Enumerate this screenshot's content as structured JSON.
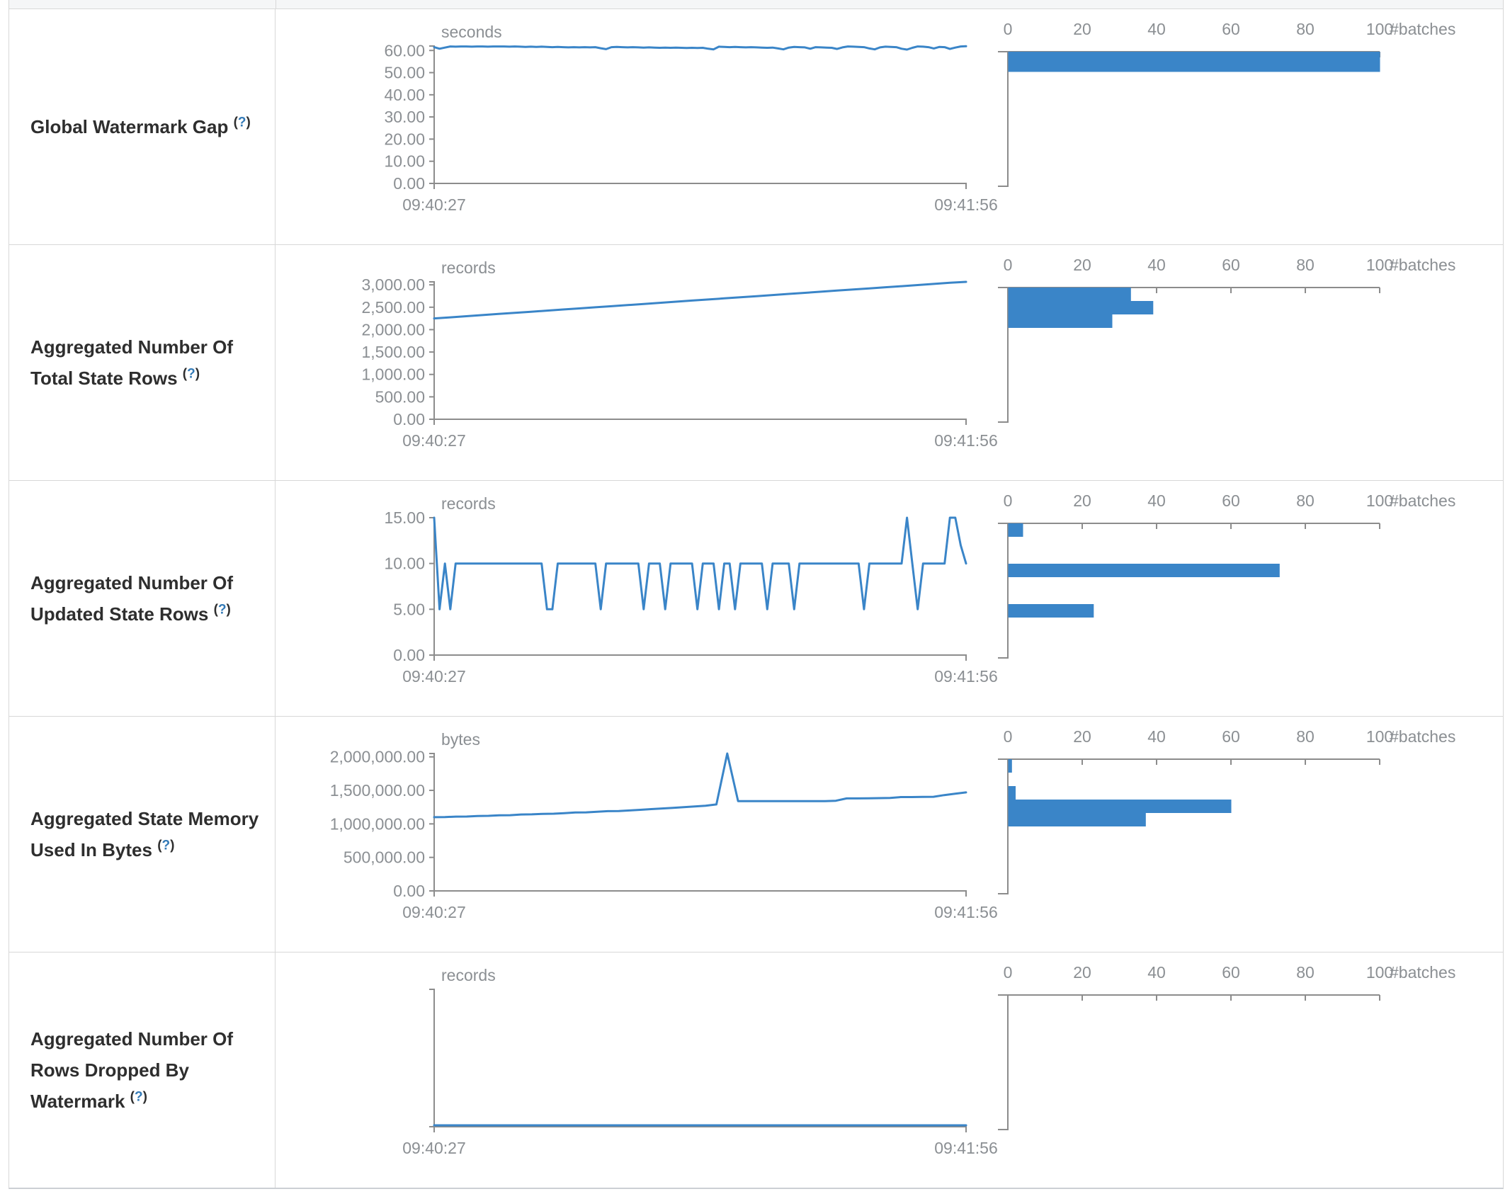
{
  "table": {
    "help_open": "(",
    "help_q": "?",
    "help_close": ")"
  },
  "chart_data": [
    {
      "row_label": "Global Watermark Gap",
      "timeline": {
        "type": "line",
        "unit": "seconds",
        "x_start": "09:40:27",
        "x_end": "09:41:56",
        "y_max": 62,
        "y_ticks": [
          {
            "v": 0,
            "label": "0.00"
          },
          {
            "v": 10,
            "label": "10.00"
          },
          {
            "v": 20,
            "label": "20.00"
          },
          {
            "v": 30,
            "label": "30.00"
          },
          {
            "v": 40,
            "label": "40.00"
          },
          {
            "v": 50,
            "label": "50.00"
          },
          {
            "v": 60,
            "label": "60.00"
          }
        ],
        "values": [
          61.5,
          60.8,
          61.3,
          61.8,
          61.7,
          61.8,
          61.8,
          61.7,
          61.8,
          61.8,
          61.7,
          61.8,
          61.8,
          61.8,
          61.7,
          61.8,
          61.7,
          61.6,
          61.7,
          61.6,
          61.7,
          61.6,
          61.5,
          61.6,
          61.5,
          61.4,
          61.5,
          61.4,
          61.5,
          61.4,
          61.5,
          61.0,
          60.6,
          61.5,
          61.6,
          61.5,
          61.4,
          61.5,
          61.4,
          61.3,
          61.4,
          61.3,
          61.2,
          61.3,
          61.2,
          61.3,
          61.2,
          61.1,
          61.2,
          61.1,
          61.2,
          60.8,
          60.5,
          61.7,
          61.6,
          61.5,
          61.6,
          61.5,
          61.4,
          61.5,
          61.4,
          61.3,
          61.2,
          61.3,
          60.9,
          60.5,
          61.3,
          61.6,
          61.5,
          61.4,
          60.8,
          61.5,
          61.4,
          61.3,
          61.2,
          60.7,
          61.4,
          61.8,
          61.7,
          61.6,
          61.5,
          60.9,
          60.5,
          61.4,
          61.7,
          61.6,
          61.5,
          60.8,
          60.4,
          61.2,
          61.8,
          61.7,
          61.5,
          60.9,
          61.6,
          61.5,
          60.7,
          61.3,
          61.8,
          61.9
        ]
      },
      "histogram": {
        "type": "bar",
        "xlabel": "#batches",
        "x_ticks": [
          0,
          20,
          40,
          60,
          80,
          100
        ],
        "x_max": 100,
        "buckets": [
          {
            "low": 52.7,
            "high": 62,
            "count": 100
          }
        ]
      }
    },
    {
      "row_label": "Aggregated Number Of Total State Rows",
      "timeline": {
        "type": "line",
        "unit": "records",
        "x_start": "09:40:27",
        "x_end": "09:41:56",
        "y_max": 3066,
        "y_ticks": [
          {
            "v": 0,
            "label": "0.00"
          },
          {
            "v": 500,
            "label": "500.00"
          },
          {
            "v": 1000,
            "label": "1,000.00"
          },
          {
            "v": 1500,
            "label": "1,500.00"
          },
          {
            "v": 2000,
            "label": "2,000.00"
          },
          {
            "v": 2500,
            "label": "2,500.00"
          },
          {
            "v": 3000,
            "label": "3,000.00"
          }
        ],
        "values": [
          2250,
          2275,
          2300,
          2325,
          2350,
          2374,
          2399,
          2424,
          2449,
          2474,
          2499,
          2523,
          2548,
          2573,
          2598,
          2623,
          2648,
          2672,
          2697,
          2722,
          2747,
          2772,
          2797,
          2821,
          2846,
          2871,
          2896,
          2921,
          2946,
          2970,
          2995,
          3020,
          3045,
          3066
        ]
      },
      "histogram": {
        "type": "bar",
        "xlabel": "#batches",
        "x_ticks": [
          0,
          20,
          40,
          60,
          80,
          100
        ],
        "x_max": 100,
        "buckets": [
          {
            "low": 2759,
            "high": 3066,
            "count": 33
          },
          {
            "low": 2453,
            "high": 2759,
            "count": 39
          },
          {
            "low": 2146,
            "high": 2453,
            "count": 28
          }
        ]
      }
    },
    {
      "row_label": "Aggregated Number Of Updated State Rows",
      "timeline": {
        "type": "line",
        "unit": "records",
        "x_start": "09:40:27",
        "x_end": "09:41:56",
        "y_max": 15,
        "y_ticks": [
          {
            "v": 0,
            "label": "0.00"
          },
          {
            "v": 5,
            "label": "5.00"
          },
          {
            "v": 10,
            "label": "10.00"
          },
          {
            "v": 15,
            "label": "15.00"
          }
        ],
        "values": [
          15,
          5,
          10,
          5,
          10,
          10,
          10,
          10,
          10,
          10,
          10,
          10,
          10,
          10,
          10,
          10,
          10,
          10,
          10,
          10,
          10,
          5,
          5,
          10,
          10,
          10,
          10,
          10,
          10,
          10,
          10,
          5,
          10,
          10,
          10,
          10,
          10,
          10,
          10,
          5,
          10,
          10,
          10,
          5,
          10,
          10,
          10,
          10,
          10,
          5,
          10,
          10,
          10,
          5,
          10,
          10,
          5,
          10,
          10,
          10,
          10,
          10,
          5,
          10,
          10,
          10,
          10,
          5,
          10,
          10,
          10,
          10,
          10,
          10,
          10,
          10,
          10,
          10,
          10,
          10,
          5,
          10,
          10,
          10,
          10,
          10,
          10,
          10,
          15,
          10,
          5,
          10,
          10,
          10,
          10,
          10,
          15,
          15,
          12,
          10
        ]
      },
      "histogram": {
        "type": "bar",
        "xlabel": "#batches",
        "x_ticks": [
          0,
          20,
          40,
          60,
          80,
          100
        ],
        "x_max": 100,
        "buckets": [
          {
            "low": 13.5,
            "high": 15,
            "count": 4
          },
          {
            "low": 9,
            "high": 10.5,
            "count": 73
          },
          {
            "low": 4.5,
            "high": 6,
            "count": 23
          }
        ]
      }
    },
    {
      "row_label": "Aggregated State Memory Used In Bytes",
      "timeline": {
        "type": "line",
        "unit": "bytes",
        "x_start": "09:40:27",
        "x_end": "09:41:56",
        "y_max": 2050000,
        "y_ticks": [
          {
            "v": 0,
            "label": "0.00"
          },
          {
            "v": 500000,
            "label": "500,000.00"
          },
          {
            "v": 1000000,
            "label": "1,000,000.00"
          },
          {
            "v": 1500000,
            "label": "1,500,000.00"
          },
          {
            "v": 2000000,
            "label": "2,000,000.00"
          }
        ],
        "values": [
          1100000,
          1102000,
          1108000,
          1110000,
          1118000,
          1120000,
          1128000,
          1130000,
          1140000,
          1142000,
          1150000,
          1152000,
          1160000,
          1170000,
          1172000,
          1180000,
          1190000,
          1192000,
          1200000,
          1210000,
          1220000,
          1230000,
          1240000,
          1250000,
          1260000,
          1270000,
          1290000,
          2050000,
          1340000,
          1340000,
          1340000,
          1340000,
          1340000,
          1340000,
          1340000,
          1340000,
          1340000,
          1345000,
          1380000,
          1380000,
          1382000,
          1384000,
          1386000,
          1400000,
          1400000,
          1402000,
          1404000,
          1430000,
          1450000,
          1470000
        ]
      },
      "histogram": {
        "type": "bar",
        "xlabel": "#batches",
        "x_ticks": [
          0,
          20,
          40,
          60,
          80,
          100
        ],
        "x_max": 100,
        "buckets": [
          {
            "low": 1845000,
            "high": 2050000,
            "count": 1
          },
          {
            "low": 1435000,
            "high": 1640000,
            "count": 2
          },
          {
            "low": 1230000,
            "high": 1435000,
            "count": 60
          },
          {
            "low": 1025000,
            "high": 1230000,
            "count": 37
          }
        ]
      }
    },
    {
      "row_label": "Aggregated Number Of Rows Dropped By Watermark",
      "timeline": {
        "type": "line",
        "unit": "records",
        "x_start": "09:40:27",
        "x_end": "09:41:56",
        "y_max": 0,
        "y_ticks": [],
        "values": [
          0,
          0
        ]
      },
      "histogram": {
        "type": "bar",
        "xlabel": "#batches",
        "x_ticks": [
          0,
          20,
          40,
          60,
          80,
          100
        ],
        "x_max": 100,
        "buckets": []
      }
    }
  ]
}
